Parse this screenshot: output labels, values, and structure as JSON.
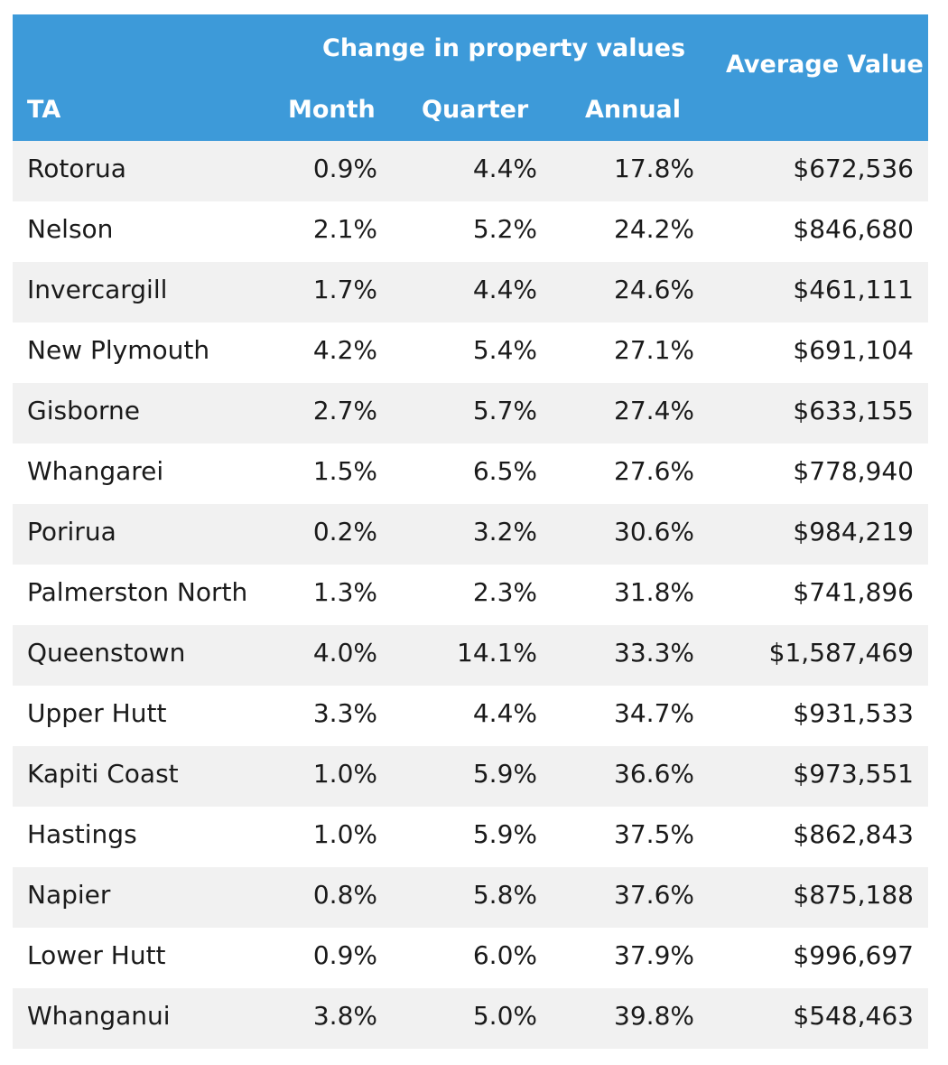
{
  "header": {
    "group_title": "Change in property values",
    "col_ta": "TA",
    "col_month": "Month",
    "col_quarter": "Quarter",
    "col_annual": "Annual",
    "col_average": "Average Value"
  },
  "colors": {
    "header_bg": "#3d9ad9",
    "header_text": "#ffffff",
    "row_alt_bg": "#f1f1f1"
  },
  "rows": [
    {
      "ta": "Rotorua",
      "month": "0.9%",
      "quarter": "4.4%",
      "annual": "17.8%",
      "average": "$672,536"
    },
    {
      "ta": "Nelson",
      "month": "2.1%",
      "quarter": "5.2%",
      "annual": "24.2%",
      "average": "$846,680"
    },
    {
      "ta": "Invercargill",
      "month": "1.7%",
      "quarter": "4.4%",
      "annual": "24.6%",
      "average": "$461,111"
    },
    {
      "ta": "New Plymouth",
      "month": "4.2%",
      "quarter": "5.4%",
      "annual": "27.1%",
      "average": "$691,104"
    },
    {
      "ta": "Gisborne",
      "month": "2.7%",
      "quarter": "5.7%",
      "annual": "27.4%",
      "average": "$633,155"
    },
    {
      "ta": "Whangarei",
      "month": "1.5%",
      "quarter": "6.5%",
      "annual": "27.6%",
      "average": "$778,940"
    },
    {
      "ta": "Porirua",
      "month": "0.2%",
      "quarter": "3.2%",
      "annual": "30.6%",
      "average": "$984,219"
    },
    {
      "ta": "Palmerston North",
      "month": "1.3%",
      "quarter": "2.3%",
      "annual": "31.8%",
      "average": "$741,896"
    },
    {
      "ta": "Queenstown",
      "month": "4.0%",
      "quarter": "14.1%",
      "annual": "33.3%",
      "average": "$1,587,469"
    },
    {
      "ta": "Upper Hutt",
      "month": "3.3%",
      "quarter": "4.4%",
      "annual": "34.7%",
      "average": "$931,533"
    },
    {
      "ta": "Kapiti Coast",
      "month": "1.0%",
      "quarter": "5.9%",
      "annual": "36.6%",
      "average": "$973,551"
    },
    {
      "ta": "Hastings",
      "month": "1.0%",
      "quarter": "5.9%",
      "annual": "37.5%",
      "average": "$862,843"
    },
    {
      "ta": "Napier",
      "month": "0.8%",
      "quarter": "5.8%",
      "annual": "37.6%",
      "average": "$875,188"
    },
    {
      "ta": "Lower Hutt",
      "month": "0.9%",
      "quarter": "6.0%",
      "annual": "37.9%",
      "average": "$996,697"
    },
    {
      "ta": "Whanganui",
      "month": "3.8%",
      "quarter": "5.0%",
      "annual": "39.8%",
      "average": "$548,463"
    }
  ]
}
